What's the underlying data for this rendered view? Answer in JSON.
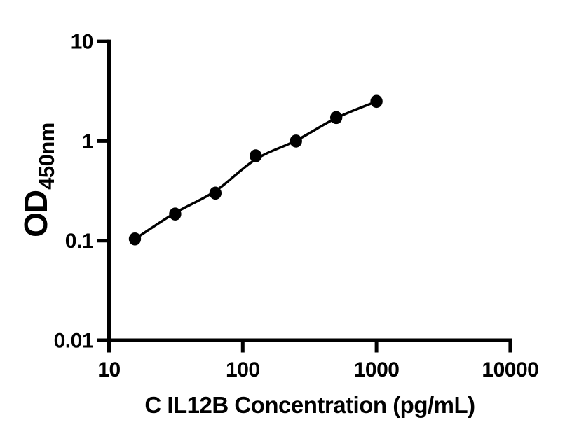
{
  "chart_data": {
    "type": "scatter",
    "title": "",
    "xlabel": "C IL12B Concentration (pg/mL)",
    "ylabel": "OD450nm",
    "ylabel_parts": {
      "base": "OD",
      "subscript": "450nm"
    },
    "x_scale": "log",
    "y_scale": "log",
    "xlim": [
      10,
      10000
    ],
    "ylim": [
      0.01,
      10
    ],
    "x_ticks": [
      {
        "value": 10,
        "label": "10"
      },
      {
        "value": 100,
        "label": "100"
      },
      {
        "value": 1000,
        "label": "1000"
      },
      {
        "value": 10000,
        "label": "10000"
      }
    ],
    "y_ticks": [
      {
        "value": 10,
        "label": "10"
      },
      {
        "value": 1,
        "label": "1"
      },
      {
        "value": 0.1,
        "label": "0.1"
      },
      {
        "value": 0.01,
        "label": "0.01"
      }
    ],
    "series": [
      {
        "name": "standard-curve-points",
        "x": [
          15.625,
          31.25,
          62.5,
          125,
          250,
          500,
          1000
        ],
        "y": [
          0.104,
          0.185,
          0.3,
          0.71,
          1.0,
          1.72,
          2.5
        ]
      }
    ],
    "fit_curve": {
      "name": "four-parameter-logistic-fit",
      "x": [
        15.625,
        31.25,
        62.5,
        125,
        250,
        500,
        1000
      ],
      "y": [
        0.104,
        0.19,
        0.315,
        0.655,
        1.01,
        1.7,
        2.5
      ]
    },
    "grid": false,
    "legend": false,
    "marker_color": "#000000",
    "line_color": "#000000",
    "axis_color": "#000000",
    "background_color": "#ffffff"
  }
}
